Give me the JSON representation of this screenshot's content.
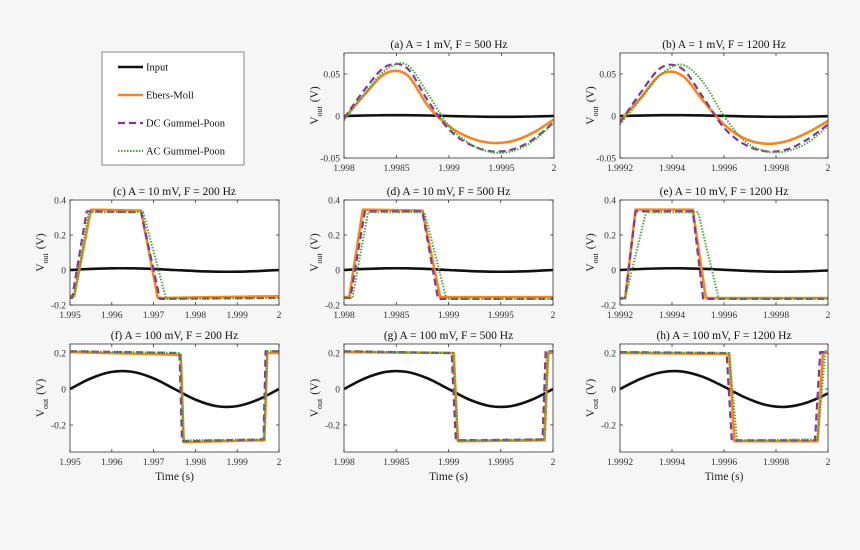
{
  "colors": {
    "Input": "#111111",
    "Ebers-Moll": "#f7861f",
    "DC Gummel-Poon": "#7e3a94",
    "AC Gummel-Poon": "#44a83c"
  },
  "legend": {
    "position": "top-left",
    "entries": [
      "Input",
      "Ebers-Moll",
      "DC Gummel-Poon",
      "AC Gummel-Poon"
    ]
  },
  "chart_data": [
    {
      "type": "line",
      "title": "(a) A = 1 mV, F = 500 Hz",
      "xlim": [
        1.998,
        2
      ],
      "ylim": [
        -0.05,
        0.075
      ],
      "xticks": [
        1.998,
        1.9985,
        1.999,
        1.9995,
        2
      ],
      "xtick_labels": [
        "1.998",
        "1.9985",
        "1.999",
        "1.9995",
        "2"
      ],
      "yticks": [
        -0.05,
        0,
        0.05
      ],
      "ytick_labels": [
        "-0.05",
        "0",
        "0.05"
      ],
      "ylabel": {
        "main": "V",
        "sub": "out",
        "unit": "(V)"
      },
      "xlabel": "",
      "series": [
        {
          "name": "Input",
          "x": [
            1.998,
            1.9982,
            1.9984,
            1.9986,
            1.9988,
            1.999,
            1.9992,
            1.9994,
            1.9996,
            1.9998,
            2
          ],
          "y": [
            0,
            0.0006,
            0.00095,
            0.00095,
            0.0006,
            0,
            -0.0006,
            -0.00095,
            -0.00095,
            -0.0006,
            0
          ]
        },
        {
          "name": "Ebers-Moll",
          "x": [
            1.998,
            1.9982,
            1.9984,
            1.9986,
            1.9988,
            1.999,
            1.9992,
            1.9994,
            1.9996,
            1.9998,
            2
          ],
          "y": [
            -0.003,
            0.026,
            0.051,
            0.049,
            0.012,
            -0.012,
            -0.026,
            -0.032,
            -0.03,
            -0.02,
            -0.004
          ]
        },
        {
          "name": "DC Gummel-Poon",
          "x": [
            1.998,
            1.9982,
            1.9984,
            1.9986,
            1.9988,
            1.999,
            1.9992,
            1.9994,
            1.9996,
            1.9998,
            2
          ],
          "y": [
            -0.003,
            0.032,
            0.059,
            0.057,
            0.018,
            -0.016,
            -0.034,
            -0.042,
            -0.04,
            -0.028,
            -0.007
          ]
        },
        {
          "name": "AC Gummel-Poon",
          "x": [
            1.998,
            1.9982,
            1.9984,
            1.9986,
            1.9988,
            1.999,
            1.9992,
            1.9994,
            1.9996,
            1.9998,
            2
          ],
          "y": [
            -0.005,
            0.027,
            0.055,
            0.061,
            0.026,
            -0.012,
            -0.033,
            -0.043,
            -0.042,
            -0.03,
            -0.008
          ]
        }
      ]
    },
    {
      "type": "line",
      "title": "(b) A = 1 mV, F = 1200 Hz",
      "xlim": [
        1.9992,
        2
      ],
      "ylim": [
        -0.05,
        0.075
      ],
      "xticks": [
        1.9992,
        1.9994,
        1.9996,
        1.9998,
        2
      ],
      "xtick_labels": [
        "1.9992",
        "1.9994",
        "1.9996",
        "1.9998",
        "2"
      ],
      "yticks": [
        -0.05,
        0,
        0.05
      ],
      "ytick_labels": [
        "-0.05",
        "0",
        "0.05"
      ],
      "ylabel": {
        "main": "V",
        "sub": "out",
        "unit": "(V)"
      },
      "xlabel": "",
      "series": [
        {
          "name": "Input",
          "x": [
            1.9992,
            1.99928,
            1.99936,
            1.99944,
            1.99952,
            1.9996,
            1.99968,
            1.99976,
            1.99984,
            1.99992,
            2
          ],
          "y": [
            0,
            0.00057,
            0.00093,
            0.00097,
            0.00067,
            0.00013,
            -0.00046,
            -0.00088,
            -0.00099,
            -0.00075,
            -0.00025
          ]
        },
        {
          "name": "Ebers-Moll",
          "x": [
            1.9992,
            1.99928,
            1.99936,
            1.99944,
            1.99952,
            1.9996,
            1.99968,
            1.99976,
            1.99984,
            1.99992,
            2
          ],
          "y": [
            -0.006,
            0.022,
            0.05,
            0.048,
            0.018,
            -0.01,
            -0.027,
            -0.033,
            -0.03,
            -0.02,
            -0.006
          ]
        },
        {
          "name": "DC Gummel-Poon",
          "x": [
            1.9992,
            1.99928,
            1.99936,
            1.99944,
            1.99952,
            1.9996,
            1.99968,
            1.99976,
            1.99984,
            1.99992,
            2
          ],
          "y": [
            -0.008,
            0.028,
            0.058,
            0.056,
            0.022,
            -0.014,
            -0.034,
            -0.042,
            -0.04,
            -0.028,
            -0.01
          ]
        },
        {
          "name": "AC Gummel-Poon",
          "x": [
            1.9992,
            1.99928,
            1.99936,
            1.99944,
            1.99952,
            1.9996,
            1.99968,
            1.99976,
            1.99984,
            1.99992,
            2
          ],
          "y": [
            -0.01,
            0.02,
            0.05,
            0.061,
            0.04,
            0.0,
            -0.03,
            -0.042,
            -0.042,
            -0.032,
            -0.012
          ]
        }
      ]
    },
    {
      "type": "line",
      "title": "(c) A = 10 mV, F = 200 Hz",
      "xlim": [
        1.995,
        2
      ],
      "ylim": [
        -0.2,
        0.4
      ],
      "xticks": [
        1.995,
        1.996,
        1.997,
        1.998,
        1.999,
        2
      ],
      "xtick_labels": [
        "1.995",
        "1.996",
        "1.997",
        "1.998",
        "1.999",
        "2"
      ],
      "yticks": [
        -0.2,
        0,
        0.2,
        0.4
      ],
      "ytick_labels": [
        "-0.2",
        "0",
        "0.2",
        "0.4"
      ],
      "ylabel": {
        "main": "V",
        "sub": "out",
        "unit": "(V)"
      },
      "xlabel": "",
      "series": [
        {
          "name": "Input",
          "x": [
            1.995,
            1.9955,
            1.996,
            1.9965,
            1.997,
            1.9975,
            1.998,
            1.9985,
            1.999,
            1.9995,
            2
          ],
          "y": [
            0,
            0.0059,
            0.0095,
            0.0095,
            0.0059,
            0,
            -0.0059,
            -0.0095,
            -0.0095,
            -0.0059,
            0
          ]
        },
        {
          "name": "Ebers-Moll",
          "x": [
            1.995,
            1.9951,
            1.9955,
            1.9967,
            1.9971,
            2
          ],
          "y": [
            -0.15,
            -0.15,
            0.345,
            0.34,
            -0.16,
            -0.15
          ]
        },
        {
          "name": "DC Gummel-Poon",
          "x": [
            1.995,
            1.99505,
            1.9954,
            1.9967,
            1.99715,
            2
          ],
          "y": [
            -0.16,
            -0.16,
            0.335,
            0.33,
            -0.165,
            -0.16
          ]
        },
        {
          "name": "AC Gummel-Poon",
          "x": [
            1.995,
            1.9951,
            1.99545,
            1.99675,
            1.9973,
            2
          ],
          "y": [
            -0.16,
            -0.15,
            0.33,
            0.33,
            -0.165,
            -0.16
          ]
        }
      ]
    },
    {
      "type": "line",
      "title": "(d) A = 10 mV, F = 500 Hz",
      "xlim": [
        1.998,
        2
      ],
      "ylim": [
        -0.2,
        0.4
      ],
      "xticks": [
        1.998,
        1.9985,
        1.999,
        1.9995,
        2
      ],
      "xtick_labels": [
        "1.998",
        "1.9985",
        "1.999",
        "1.9995",
        "2"
      ],
      "yticks": [
        -0.2,
        0,
        0.2,
        0.4
      ],
      "ytick_labels": [
        "-0.2",
        "0",
        "0.2",
        "0.4"
      ],
      "ylabel": {
        "main": "V",
        "sub": "out",
        "unit": "(V)"
      },
      "xlabel": "",
      "series": [
        {
          "name": "Input",
          "x": [
            1.998,
            1.9982,
            1.9984,
            1.9986,
            1.9988,
            1.999,
            1.9992,
            1.9994,
            1.9996,
            1.9998,
            2
          ],
          "y": [
            0,
            0.0059,
            0.0095,
            0.0095,
            0.0059,
            0,
            -0.0059,
            -0.0095,
            -0.0095,
            -0.0059,
            0
          ]
        },
        {
          "name": "Ebers-Moll",
          "x": [
            1.998,
            1.99805,
            1.99818,
            1.99875,
            1.99892,
            2
          ],
          "y": [
            -0.155,
            -0.155,
            0.345,
            0.34,
            -0.155,
            -0.155
          ]
        },
        {
          "name": "DC Gummel-Poon",
          "x": [
            1.998,
            1.99806,
            1.9982,
            1.99875,
            1.9989,
            2
          ],
          "y": [
            -0.16,
            -0.16,
            0.335,
            0.335,
            -0.165,
            -0.165
          ]
        },
        {
          "name": "AC Gummel-Poon",
          "x": [
            1.998,
            1.99808,
            1.99823,
            1.99877,
            1.99898,
            2
          ],
          "y": [
            -0.16,
            -0.16,
            0.33,
            0.33,
            -0.165,
            -0.165
          ]
        }
      ]
    },
    {
      "type": "line",
      "title": "(e) A = 10 mV, F = 1200 Hz",
      "xlim": [
        1.9992,
        2
      ],
      "ylim": [
        -0.2,
        0.4
      ],
      "xticks": [
        1.9992,
        1.9994,
        1.9996,
        1.9998,
        2
      ],
      "xtick_labels": [
        "1.9992",
        "1.9994",
        "1.9996",
        "1.9998",
        "2"
      ],
      "yticks": [
        -0.2,
        0,
        0.2,
        0.4
      ],
      "ytick_labels": [
        "-0.2",
        "0",
        "0.2",
        "0.4"
      ],
      "ylabel": {
        "main": "V",
        "sub": "out",
        "unit": "(V)"
      },
      "xlabel": "",
      "series": [
        {
          "name": "Input",
          "x": [
            1.9992,
            1.99928,
            1.99936,
            1.99944,
            1.99952,
            1.9996,
            1.99968,
            1.99976,
            1.99984,
            1.99992,
            2
          ],
          "y": [
            0,
            0.0057,
            0.0093,
            0.0097,
            0.0067,
            0.0013,
            -0.0046,
            -0.0088,
            -0.0099,
            -0.0075,
            -0.0025
          ]
        },
        {
          "name": "Ebers-Moll",
          "x": [
            1.9992,
            1.99922,
            1.99926,
            1.99948,
            1.99953,
            2
          ],
          "y": [
            -0.16,
            -0.16,
            0.345,
            0.345,
            -0.16,
            -0.16
          ]
        },
        {
          "name": "DC Gummel-Poon",
          "x": [
            1.9992,
            1.99922,
            1.99926,
            1.99948,
            1.99952,
            2
          ],
          "y": [
            -0.165,
            -0.16,
            0.335,
            0.335,
            -0.165,
            -0.165
          ]
        },
        {
          "name": "AC Gummel-Poon",
          "x": [
            1.9992,
            1.99922,
            1.9993,
            1.9995,
            1.99958,
            2
          ],
          "y": [
            -0.165,
            -0.16,
            0.33,
            0.33,
            -0.165,
            -0.165
          ]
        }
      ]
    },
    {
      "type": "line",
      "title": "(f) A = 100 mV, F = 200 Hz",
      "xlim": [
        1.995,
        2
      ],
      "ylim": [
        -0.35,
        0.25
      ],
      "xticks": [
        1.995,
        1.996,
        1.997,
        1.998,
        1.999,
        2
      ],
      "xtick_labels": [
        "1.995",
        "1.996",
        "1.997",
        "1.998",
        "1.999",
        "2"
      ],
      "yticks": [
        -0.2,
        0,
        0.2
      ],
      "ytick_labels": [
        "-0.2",
        "0",
        "0.2"
      ],
      "ylabel": {
        "main": "V",
        "sub": "out",
        "unit": "(V)"
      },
      "xlabel": "Time (s)",
      "series": [
        {
          "name": "Input",
          "x": [
            1.995,
            1.9955,
            1.996,
            1.9965,
            1.997,
            1.9975,
            1.998,
            1.9985,
            1.999,
            1.9995,
            2
          ],
          "y": [
            0,
            0.059,
            0.095,
            0.095,
            0.059,
            0,
            -0.059,
            -0.095,
            -0.095,
            -0.059,
            0
          ]
        },
        {
          "name": "Ebers-Moll",
          "x": [
            1.995,
            1.99765,
            1.99772,
            1.99965,
            1.99972,
            2
          ],
          "y": [
            0.205,
            0.19,
            -0.295,
            -0.285,
            0.2,
            0.2
          ]
        },
        {
          "name": "DC Gummel-Poon",
          "x": [
            1.995,
            1.99762,
            1.99768,
            1.99963,
            1.99968,
            2
          ],
          "y": [
            0.21,
            0.2,
            -0.29,
            -0.28,
            0.21,
            0.21
          ]
        },
        {
          "name": "AC Gummel-Poon",
          "x": [
            1.995,
            1.99764,
            1.99772,
            1.99964,
            1.99972,
            2
          ],
          "y": [
            0.21,
            0.2,
            -0.285,
            -0.28,
            0.21,
            0.21
          ]
        }
      ]
    },
    {
      "type": "line",
      "title": "(g) A = 100 mV, F = 500 Hz",
      "xlim": [
        1.998,
        2
      ],
      "ylim": [
        -0.35,
        0.25
      ],
      "xticks": [
        1.998,
        1.9985,
        1.999,
        1.9995,
        2
      ],
      "xtick_labels": [
        "1.998",
        "1.9985",
        "1.999",
        "1.9995",
        "2"
      ],
      "yticks": [
        -0.2,
        0,
        0.2
      ],
      "ytick_labels": [
        "-0.2",
        "0",
        "0.2"
      ],
      "ylabel": {
        "main": "V",
        "sub": "out",
        "unit": "(V)"
      },
      "xlabel": "Time (s)",
      "series": [
        {
          "name": "Input",
          "x": [
            1.998,
            1.9982,
            1.9984,
            1.9986,
            1.9988,
            1.999,
            1.9992,
            1.9994,
            1.9996,
            1.9998,
            2
          ],
          "y": [
            0,
            0.059,
            0.095,
            0.095,
            0.059,
            0,
            -0.059,
            -0.095,
            -0.095,
            -0.059,
            0
          ]
        },
        {
          "name": "Ebers-Moll",
          "x": [
            1.998,
            1.99905,
            1.99909,
            1.99992,
            1.99995,
            2
          ],
          "y": [
            0.205,
            0.2,
            -0.29,
            -0.285,
            0.2,
            0.2
          ]
        },
        {
          "name": "DC Gummel-Poon",
          "x": [
            1.998,
            1.99903,
            1.99907,
            1.9999,
            1.99993,
            2
          ],
          "y": [
            0.21,
            0.2,
            -0.285,
            -0.28,
            0.21,
            0.21
          ]
        },
        {
          "name": "AC Gummel-Poon",
          "x": [
            1.998,
            1.99904,
            1.99909,
            1.99991,
            1.99996,
            2
          ],
          "y": [
            0.21,
            0.2,
            -0.285,
            -0.28,
            0.21,
            0.21
          ]
        }
      ]
    },
    {
      "type": "line",
      "title": "(h) A = 100 mV, F = 1200 Hz",
      "xlim": [
        1.9992,
        2
      ],
      "ylim": [
        -0.35,
        0.25
      ],
      "xticks": [
        1.9992,
        1.9994,
        1.9996,
        1.9998,
        2
      ],
      "xtick_labels": [
        "1.9992",
        "1.9994",
        "1.9996",
        "1.9998",
        "2"
      ],
      "yticks": [
        -0.2,
        0,
        0.2
      ],
      "ytick_labels": [
        "-0.2",
        "0",
        "0.2"
      ],
      "ylabel": {
        "main": "V",
        "sub": "out",
        "unit": "(V)"
      },
      "xlabel": "Time (s)",
      "series": [
        {
          "name": "Input",
          "x": [
            1.9992,
            1.99928,
            1.99936,
            1.99944,
            1.99952,
            1.9996,
            1.99968,
            1.99976,
            1.99984,
            1.99992,
            2
          ],
          "y": [
            0,
            0.057,
            0.093,
            0.097,
            0.067,
            0.013,
            -0.046,
            -0.088,
            -0.099,
            -0.075,
            -0.025
          ]
        },
        {
          "name": "Ebers-Moll",
          "x": [
            1.9992,
            1.99962,
            1.99964,
            1.99996,
            1.99998,
            2
          ],
          "y": [
            0.2,
            0.195,
            -0.29,
            -0.29,
            0.2,
            0.2
          ]
        },
        {
          "name": "DC Gummel-Poon",
          "x": [
            1.9992,
            1.99961,
            1.99963,
            1.99995,
            1.99997,
            2
          ],
          "y": [
            0.205,
            0.2,
            -0.285,
            -0.285,
            0.205,
            0.205
          ]
        },
        {
          "name": "AC Gummel-Poon",
          "x": [
            1.9992,
            1.99962,
            1.99965,
            1.99996,
            1.99999,
            2
          ],
          "y": [
            0.205,
            0.2,
            -0.285,
            -0.28,
            0.21,
            0.21
          ]
        }
      ]
    }
  ]
}
